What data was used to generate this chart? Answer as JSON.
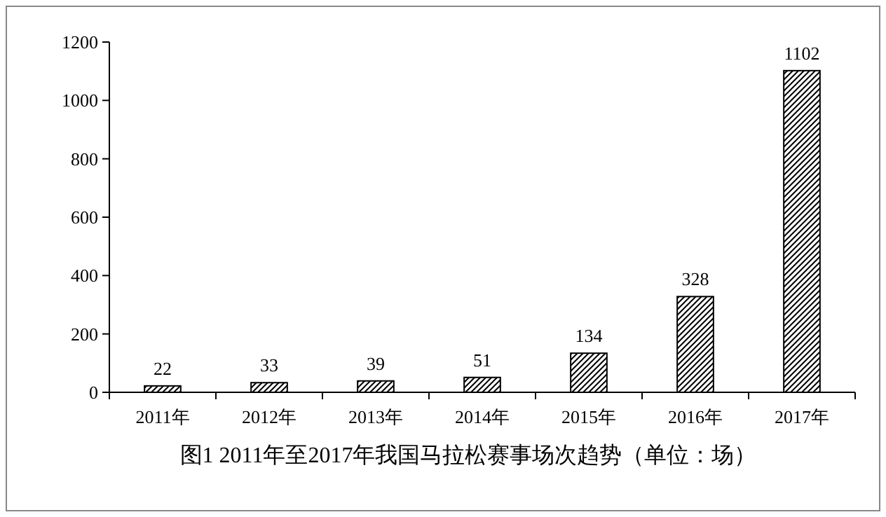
{
  "chart_data": {
    "type": "bar",
    "title": "图1 2011年至2017年我国马拉松赛事场次趋势（单位：场）",
    "categories": [
      "2011年",
      "2012年",
      "2013年",
      "2014年",
      "2015年",
      "2016年",
      "2017年"
    ],
    "values": [
      22,
      33,
      39,
      51,
      134,
      328,
      1102
    ],
    "color": "#000000",
    "ylim": [
      0,
      1200
    ],
    "yticks": [
      0,
      200,
      400,
      600,
      800,
      1000,
      1200
    ],
    "grid": false,
    "data_labels": true
  }
}
